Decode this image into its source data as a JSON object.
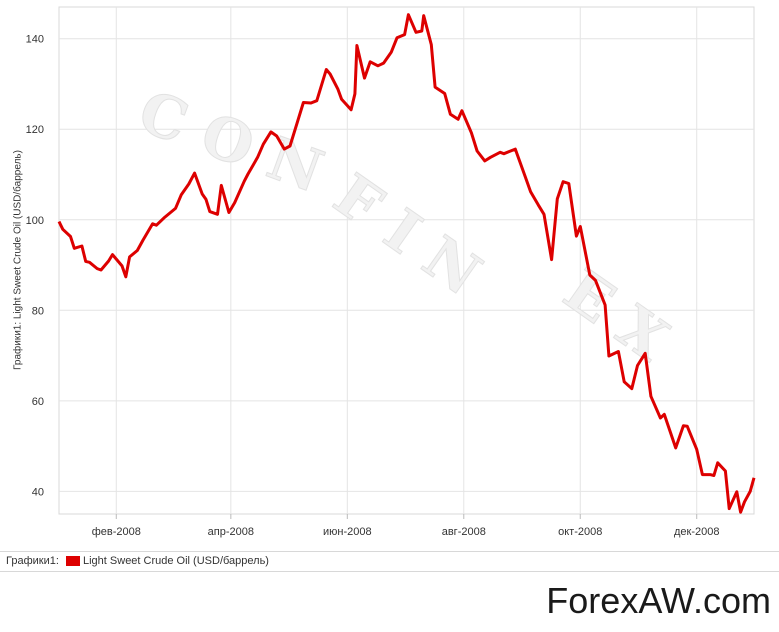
{
  "chart_data": {
    "type": "line",
    "title": "",
    "ylabel": "Графики1: Light Sweet Crude Oil (USD/баррель)",
    "xlabel": "",
    "ylim": [
      35,
      147
    ],
    "yticks": [
      40,
      60,
      80,
      100,
      120,
      140
    ],
    "xticks": [
      {
        "label": "фев-2008",
        "date": "2008-02-01"
      },
      {
        "label": "апр-2008",
        "date": "2008-04-01"
      },
      {
        "label": "июн-2008",
        "date": "2008-06-01"
      },
      {
        "label": "авг-2008",
        "date": "2008-08-01"
      },
      {
        "label": "окт-2008",
        "date": "2008-10-01"
      },
      {
        "label": "дек-2008",
        "date": "2008-12-01"
      }
    ],
    "xlim": [
      "2008-01-02",
      "2008-12-31"
    ],
    "grid": true,
    "series": [
      {
        "name": "Light Sweet Crude Oil (USD/баррель)",
        "color": "#dd0000",
        "points": [
          [
            "2008-01-02",
            99.6
          ],
          [
            "2008-01-04",
            97.9
          ],
          [
            "2008-01-08",
            96.3
          ],
          [
            "2008-01-10",
            93.7
          ],
          [
            "2008-01-14",
            94.2
          ],
          [
            "2008-01-16",
            90.8
          ],
          [
            "2008-01-18",
            90.6
          ],
          [
            "2008-01-22",
            89.2
          ],
          [
            "2008-01-24",
            88.9
          ],
          [
            "2008-01-28",
            90.9
          ],
          [
            "2008-01-30",
            92.3
          ],
          [
            "2008-02-04",
            89.8
          ],
          [
            "2008-02-06",
            87.4
          ],
          [
            "2008-02-08",
            91.8
          ],
          [
            "2008-02-12",
            93.2
          ],
          [
            "2008-02-15",
            95.5
          ],
          [
            "2008-02-20",
            99.1
          ],
          [
            "2008-02-22",
            98.8
          ],
          [
            "2008-02-26",
            100.4
          ],
          [
            "2008-03-03",
            102.5
          ],
          [
            "2008-03-06",
            105.5
          ],
          [
            "2008-03-10",
            107.9
          ],
          [
            "2008-03-13",
            110.3
          ],
          [
            "2008-03-17",
            105.7
          ],
          [
            "2008-03-19",
            104.5
          ],
          [
            "2008-03-21",
            101.8
          ],
          [
            "2008-03-25",
            101.2
          ],
          [
            "2008-03-27",
            107.6
          ],
          [
            "2008-03-31",
            101.6
          ],
          [
            "2008-04-03",
            103.8
          ],
          [
            "2008-04-08",
            108.5
          ],
          [
            "2008-04-10",
            110.1
          ],
          [
            "2008-04-15",
            113.8
          ],
          [
            "2008-04-18",
            116.7
          ],
          [
            "2008-04-22",
            119.4
          ],
          [
            "2008-04-25",
            118.5
          ],
          [
            "2008-04-29",
            115.6
          ],
          [
            "2008-05-02",
            116.3
          ],
          [
            "2008-05-06",
            121.8
          ],
          [
            "2008-05-09",
            125.9
          ],
          [
            "2008-05-13",
            125.8
          ],
          [
            "2008-05-16",
            126.3
          ],
          [
            "2008-05-21",
            133.2
          ],
          [
            "2008-05-23",
            132.2
          ],
          [
            "2008-05-27",
            128.9
          ],
          [
            "2008-05-29",
            126.6
          ],
          [
            "2008-06-03",
            124.3
          ],
          [
            "2008-06-05",
            127.8
          ],
          [
            "2008-06-06",
            138.5
          ],
          [
            "2008-06-10",
            131.3
          ],
          [
            "2008-06-13",
            134.9
          ],
          [
            "2008-06-17",
            134.0
          ],
          [
            "2008-06-20",
            134.6
          ],
          [
            "2008-06-24",
            137.0
          ],
          [
            "2008-06-27",
            140.2
          ],
          [
            "2008-07-01",
            140.9
          ],
          [
            "2008-07-03",
            145.3
          ],
          [
            "2008-07-07",
            141.4
          ],
          [
            "2008-07-10",
            141.7
          ],
          [
            "2008-07-11",
            145.1
          ],
          [
            "2008-07-15",
            138.7
          ],
          [
            "2008-07-17",
            129.3
          ],
          [
            "2008-07-22",
            127.9
          ],
          [
            "2008-07-25",
            123.3
          ],
          [
            "2008-07-29",
            122.2
          ],
          [
            "2008-07-31",
            124.1
          ],
          [
            "2008-08-05",
            119.2
          ],
          [
            "2008-08-08",
            115.2
          ],
          [
            "2008-08-12",
            113.0
          ],
          [
            "2008-08-15",
            113.8
          ],
          [
            "2008-08-20",
            114.9
          ],
          [
            "2008-08-22",
            114.6
          ],
          [
            "2008-08-25",
            115.1
          ],
          [
            "2008-08-28",
            115.6
          ],
          [
            "2008-09-02",
            109.7
          ],
          [
            "2008-09-05",
            106.2
          ],
          [
            "2008-09-09",
            103.3
          ],
          [
            "2008-09-12",
            101.2
          ],
          [
            "2008-09-16",
            91.2
          ],
          [
            "2008-09-19",
            104.6
          ],
          [
            "2008-09-22",
            108.4
          ],
          [
            "2008-09-25",
            108.0
          ],
          [
            "2008-09-29",
            96.4
          ],
          [
            "2008-10-01",
            98.5
          ],
          [
            "2008-10-06",
            87.8
          ],
          [
            "2008-10-09",
            86.6
          ],
          [
            "2008-10-14",
            81.2
          ],
          [
            "2008-10-16",
            69.9
          ],
          [
            "2008-10-21",
            70.9
          ],
          [
            "2008-10-24",
            64.2
          ],
          [
            "2008-10-28",
            62.7
          ],
          [
            "2008-10-31",
            67.8
          ],
          [
            "2008-11-04",
            70.5
          ],
          [
            "2008-11-07",
            61.0
          ],
          [
            "2008-11-12",
            56.2
          ],
          [
            "2008-11-14",
            57.0
          ],
          [
            "2008-11-20",
            49.6
          ],
          [
            "2008-11-24",
            54.5
          ],
          [
            "2008-11-26",
            54.4
          ],
          [
            "2008-12-01",
            49.3
          ],
          [
            "2008-12-04",
            43.7
          ],
          [
            "2008-12-08",
            43.7
          ],
          [
            "2008-12-10",
            43.5
          ],
          [
            "2008-12-12",
            46.3
          ],
          [
            "2008-12-16",
            44.5
          ],
          [
            "2008-12-18",
            36.2
          ],
          [
            "2008-12-22",
            39.9
          ],
          [
            "2008-12-24",
            35.4
          ],
          [
            "2008-12-26",
            37.7
          ],
          [
            "2008-12-29",
            40.0
          ],
          [
            "2008-12-31",
            43.0
          ]
        ]
      }
    ]
  },
  "legend": {
    "prefix": "Графики1:",
    "name": "Light Sweet Crude Oil (USD/баррель)",
    "color": "#dd0000"
  },
  "watermark": {
    "text_line1": "CON",
    "text_line2": "FIN",
    "text_line3": "EX"
  },
  "brand": {
    "text": "ForexAW.com"
  }
}
